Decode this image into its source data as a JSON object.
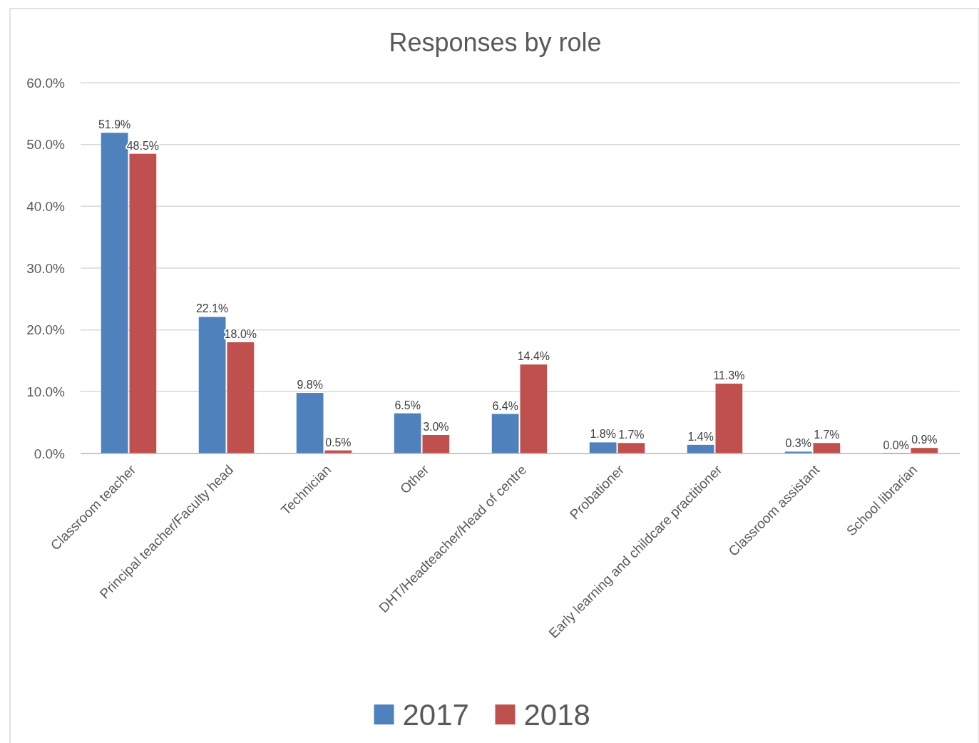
{
  "chart_data": {
    "type": "bar",
    "title": "Responses by role",
    "categories": [
      "Classroom teacher",
      "Principal teacher/Faculty head",
      "Technician",
      "Other",
      "DHT/Headteacher/Head of centre",
      "Probationer",
      "Early learning and childcare practitioner",
      "Classroom assistant",
      "School librarian"
    ],
    "series": [
      {
        "name": "2017",
        "color": "#4f81bd",
        "values": [
          51.9,
          22.1,
          9.8,
          6.5,
          6.4,
          1.8,
          1.4,
          0.3,
          0.0
        ],
        "value_labels": [
          "51.9%",
          "22.1%",
          "9.8%",
          "6.5%",
          "6.4%",
          "1.8%",
          "1.4%",
          "0.3%",
          "0.0%"
        ]
      },
      {
        "name": "2018",
        "color": "#c0504d",
        "values": [
          48.5,
          18.0,
          0.5,
          3.0,
          14.4,
          1.7,
          11.3,
          1.7,
          0.9
        ],
        "value_labels": [
          "48.5%",
          "18.0%",
          "0.5%",
          "3.0%",
          "14.4%",
          "1.7%",
          "11.3%",
          "1.7%",
          "0.9%"
        ]
      }
    ],
    "ylim": [
      0,
      60
    ],
    "yticks": [
      {
        "value": 0,
        "label": "0.0%"
      },
      {
        "value": 10,
        "label": "10.0%"
      },
      {
        "value": 20,
        "label": "20.0%"
      },
      {
        "value": 30,
        "label": "30.0%"
      },
      {
        "value": 40,
        "label": "40.0%"
      },
      {
        "value": 50,
        "label": "50.0%"
      },
      {
        "value": 60,
        "label": "60.0%"
      }
    ],
    "grid": "y",
    "legend": "bottom"
  }
}
